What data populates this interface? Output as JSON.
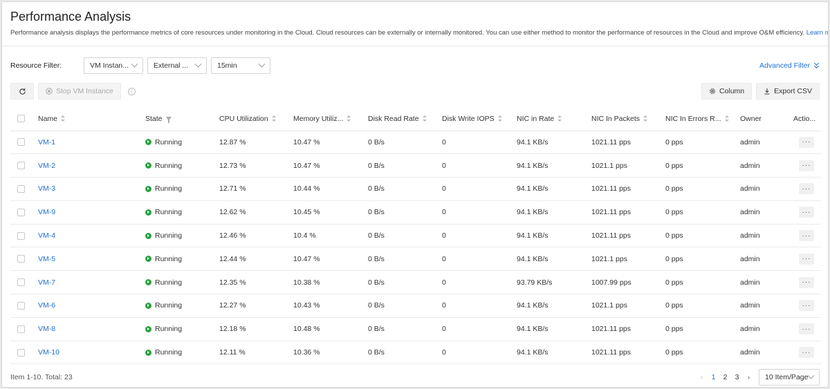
{
  "page": {
    "title": "Performance Analysis",
    "description": "Performance analysis displays the performance metrics of core resources under monitoring in the Cloud. Cloud resources can be externally or internally monitored. You can use either method to monitor the performance of resources in the Cloud and improve O&M efficiency.",
    "learn_more": "Learn more."
  },
  "filters": {
    "label": "Resource Filter:",
    "resource_type": "VM Instan...",
    "monitor_type": "External ...",
    "interval": "15min",
    "advanced_filter": "Advanced Filter"
  },
  "toolbar": {
    "stop_label": "Stop VM Instance",
    "info_glyph": "i",
    "column_label": "Column",
    "export_label": "Export CSV"
  },
  "table": {
    "columns": [
      "Name",
      "State",
      "CPU Utilization",
      "Memory Utiliz...",
      "Disk Read Rate",
      "Disk Write IOPS",
      "NIC in Rate",
      "NIC In Packets",
      "NIC In Errors R...",
      "Owner",
      "Actio..."
    ],
    "rows": [
      {
        "name": "VM-1",
        "state": "Running",
        "cpu": "12.87 %",
        "mem": "10.47 %",
        "disk_read": "0 B/s",
        "disk_write": "0",
        "nic_rate": "94.1 KB/s",
        "nic_packets": "1021.11 pps",
        "nic_errors": "0 pps",
        "owner": "admin"
      },
      {
        "name": "VM-2",
        "state": "Running",
        "cpu": "12.73 %",
        "mem": "10.47 %",
        "disk_read": "0 B/s",
        "disk_write": "0",
        "nic_rate": "94.1 KB/s",
        "nic_packets": "1021.1 pps",
        "nic_errors": "0 pps",
        "owner": "admin"
      },
      {
        "name": "VM-3",
        "state": "Running",
        "cpu": "12.71 %",
        "mem": "10.44 %",
        "disk_read": "0 B/s",
        "disk_write": "0",
        "nic_rate": "94.1 KB/s",
        "nic_packets": "1021.11 pps",
        "nic_errors": "0 pps",
        "owner": "admin"
      },
      {
        "name": "VM-9",
        "state": "Running",
        "cpu": "12.62 %",
        "mem": "10.45 %",
        "disk_read": "0 B/s",
        "disk_write": "0",
        "nic_rate": "94.1 KB/s",
        "nic_packets": "1021.11 pps",
        "nic_errors": "0 pps",
        "owner": "admin"
      },
      {
        "name": "VM-4",
        "state": "Running",
        "cpu": "12.46 %",
        "mem": "10.4 %",
        "disk_read": "0 B/s",
        "disk_write": "0",
        "nic_rate": "94.1 KB/s",
        "nic_packets": "1021.11 pps",
        "nic_errors": "0 pps",
        "owner": "admin"
      },
      {
        "name": "VM-5",
        "state": "Running",
        "cpu": "12.44 %",
        "mem": "10.47 %",
        "disk_read": "0 B/s",
        "disk_write": "0",
        "nic_rate": "94.1 KB/s",
        "nic_packets": "1021.1 pps",
        "nic_errors": "0 pps",
        "owner": "admin"
      },
      {
        "name": "VM-7",
        "state": "Running",
        "cpu": "12.35 %",
        "mem": "10.38 %",
        "disk_read": "0 B/s",
        "disk_write": "0",
        "nic_rate": "93.79 KB/s",
        "nic_packets": "1007.99 pps",
        "nic_errors": "0 pps",
        "owner": "admin"
      },
      {
        "name": "VM-6",
        "state": "Running",
        "cpu": "12.27 %",
        "mem": "10.43 %",
        "disk_read": "0 B/s",
        "disk_write": "0",
        "nic_rate": "94.1 KB/s",
        "nic_packets": "1021.1 pps",
        "nic_errors": "0 pps",
        "owner": "admin"
      },
      {
        "name": "VM-8",
        "state": "Running",
        "cpu": "12.18 %",
        "mem": "10.48 %",
        "disk_read": "0 B/s",
        "disk_write": "0",
        "nic_rate": "94.1 KB/s",
        "nic_packets": "1021.11 pps",
        "nic_errors": "0 pps",
        "owner": "admin"
      },
      {
        "name": "VM-10",
        "state": "Running",
        "cpu": "12.11 %",
        "mem": "10.36 %",
        "disk_read": "0 B/s",
        "disk_write": "0",
        "nic_rate": "94.1 KB/s",
        "nic_packets": "1021.11 pps",
        "nic_errors": "0 pps",
        "owner": "admin"
      }
    ],
    "more_glyph": "···"
  },
  "footer": {
    "total": "Item 1-10. Total: 23",
    "prev_glyph": "‹",
    "next_glyph": "›",
    "pages": [
      "1",
      "2",
      "3"
    ],
    "current_page": "1",
    "page_size": "10 Item/Page"
  },
  "colors": {
    "accent": "#1f6fd1",
    "running": "#2aa13f"
  },
  "icons": {
    "refresh": "refresh-icon",
    "stop": "stop-circle-icon",
    "info": "info-icon",
    "column": "gear-icon",
    "export": "download-icon",
    "sort": "sort-icon",
    "filter": "filter-icon",
    "running": "play-circle-icon",
    "more": "more-icon",
    "chevron": "chevron-down-icon"
  }
}
